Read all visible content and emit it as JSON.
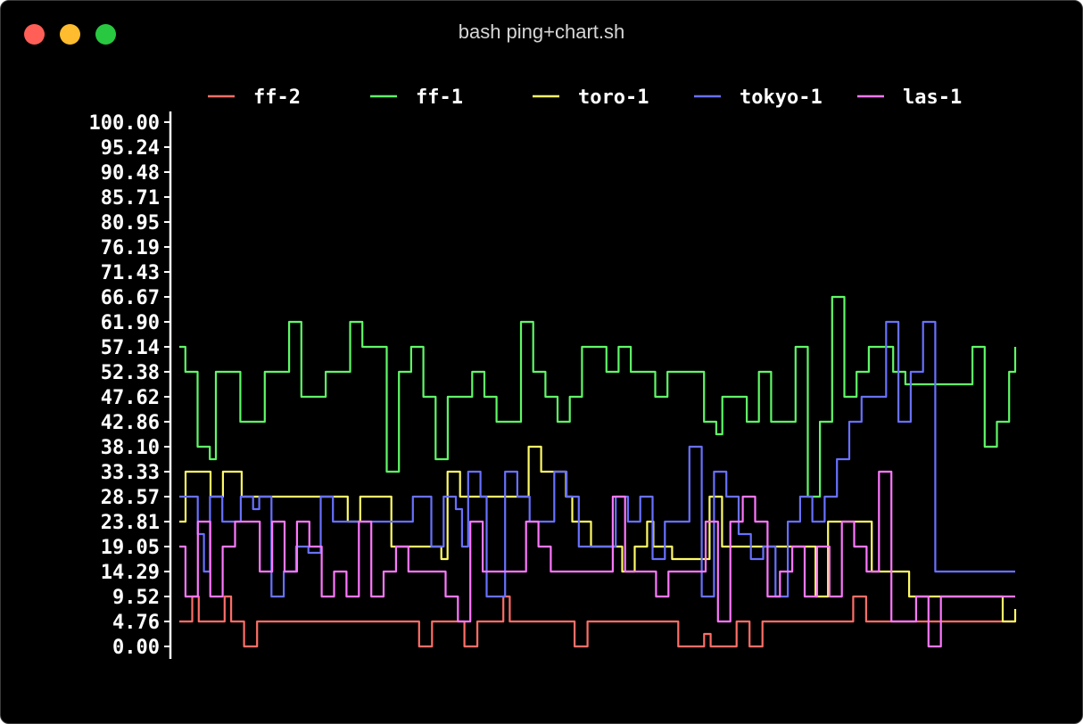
{
  "window": {
    "title": "bash ping+chart.sh",
    "controls": [
      {
        "name": "close",
        "color": "#ff5f57"
      },
      {
        "name": "minimize",
        "color": "#febc2e"
      },
      {
        "name": "zoom",
        "color": "#28c840"
      }
    ]
  },
  "chart_data": {
    "type": "line",
    "title": "",
    "xlabel": "",
    "ylabel": "",
    "ylim": [
      0,
      100
    ],
    "yticks": [
      "100.00",
      "95.24",
      "90.48",
      "85.71",
      "80.95",
      "76.19",
      "71.43",
      "66.67",
      "61.90",
      "57.14",
      "52.38",
      "47.62",
      "42.86",
      "38.10",
      "33.33",
      "28.57",
      "23.81",
      "19.05",
      "14.29",
      "9.52",
      "4.76",
      "0.00"
    ],
    "legend_position": "top",
    "series": [
      {
        "name": "ff-2",
        "color": "#ff6e67",
        "values": [
          4.76,
          4.76,
          9.52,
          4.76,
          4.76,
          4.76,
          4.76,
          9.52,
          4.76,
          4.76,
          0,
          0,
          4.76,
          4.76,
          4.76,
          4.76,
          4.76,
          4.76,
          4.76,
          4.76,
          4.76,
          4.76,
          4.76,
          4.76,
          4.76,
          4.76,
          4.76,
          4.76,
          4.76,
          4.76,
          4.76,
          4.76,
          4.76,
          4.76,
          4.76,
          4.76,
          4.76,
          0,
          0,
          4.76,
          4.76,
          4.76,
          4.76,
          4.76,
          0,
          0,
          4.76,
          4.76,
          4.76,
          4.76,
          9.52,
          4.76,
          4.76,
          4.76,
          4.76,
          4.76,
          4.76,
          4.76,
          4.76,
          4.76,
          4.76,
          0,
          0,
          4.76,
          4.76,
          4.76,
          4.76,
          4.76,
          4.76,
          4.76,
          4.76,
          4.76,
          4.76,
          4.76,
          4.76,
          4.76,
          4.76,
          0,
          0,
          0,
          0,
          2.38,
          0,
          0,
          0,
          0,
          4.76,
          4.76,
          0,
          0,
          4.76,
          4.76,
          4.76,
          4.76,
          4.76,
          4.76,
          4.76,
          4.76,
          4.76,
          4.76,
          4.76,
          4.76,
          4.76,
          4.76,
          9.52,
          9.52,
          4.76,
          4.76,
          4.76,
          4.76,
          4.76,
          4.76,
          4.76,
          4.76,
          4.76,
          4.76,
          4.76,
          4.76,
          4.76,
          4.76,
          4.76,
          4.76,
          4.76,
          4.76,
          4.76,
          4.76,
          4.76,
          4.76,
          4.76,
          4.76
        ]
      },
      {
        "name": "ff-1",
        "color": "#5ff967",
        "values": [
          57.14,
          52.38,
          52.38,
          38.1,
          38.1,
          35.71,
          52.38,
          52.38,
          52.38,
          52.38,
          42.86,
          42.86,
          42.86,
          42.86,
          52.38,
          52.38,
          52.38,
          52.38,
          61.9,
          61.9,
          47.62,
          47.62,
          47.62,
          47.62,
          52.38,
          52.38,
          52.38,
          52.38,
          61.9,
          61.9,
          57.14,
          57.14,
          57.14,
          57.14,
          33.33,
          33.33,
          52.38,
          52.38,
          57.14,
          57.14,
          47.62,
          47.62,
          35.71,
          35.71,
          47.62,
          47.62,
          47.62,
          47.62,
          52.38,
          52.38,
          47.62,
          47.62,
          42.86,
          42.86,
          42.86,
          42.86,
          61.9,
          61.9,
          52.38,
          52.38,
          47.62,
          47.62,
          42.86,
          42.86,
          47.62,
          47.62,
          57.14,
          57.14,
          57.14,
          57.14,
          52.38,
          52.38,
          57.14,
          57.14,
          52.38,
          52.38,
          52.38,
          52.38,
          47.62,
          47.62,
          52.38,
          52.38,
          52.38,
          52.38,
          52.38,
          52.38,
          42.86,
          42.86,
          40.48,
          47.62,
          47.62,
          47.62,
          47.62,
          42.86,
          42.86,
          52.38,
          52.38,
          42.86,
          42.86,
          42.86,
          42.86,
          57.14,
          57.14,
          28.57,
          28.57,
          42.86,
          42.86,
          66.67,
          66.67,
          47.62,
          47.62,
          52.38,
          52.38,
          57.14,
          57.14,
          57.14,
          57.14,
          52.38,
          52.38,
          50,
          50,
          50,
          50,
          50,
          50,
          50,
          50,
          50,
          50,
          50,
          57.14,
          57.14,
          38.1,
          38.1,
          42.86,
          42.86,
          52.38,
          57.14
        ]
      },
      {
        "name": "toro-1",
        "color": "#fefb67",
        "values": [
          23.81,
          33.33,
          33.33,
          33.33,
          33.33,
          28.57,
          28.57,
          33.33,
          33.33,
          33.33,
          28.57,
          28.57,
          28.57,
          28.57,
          28.57,
          28.57,
          28.57,
          28.57,
          28.57,
          28.57,
          28.57,
          28.57,
          28.57,
          28.57,
          28.57,
          28.57,
          28.57,
          23.81,
          23.81,
          28.57,
          28.57,
          28.57,
          28.57,
          28.57,
          19.05,
          19.05,
          19.05,
          19.05,
          19.05,
          19.05,
          19.05,
          19.05,
          16.67,
          33.33,
          33.33,
          28.57,
          28.57,
          28.57,
          28.57,
          28.57,
          28.57,
          28.57,
          28.57,
          28.57,
          28.57,
          28.57,
          38.1,
          38.1,
          33.33,
          33.33,
          33.33,
          33.33,
          28.57,
          23.81,
          23.81,
          23.81,
          19.05,
          19.05,
          19.05,
          19.05,
          19.05,
          14.29,
          14.29,
          19.05,
          19.05,
          23.81,
          19.05,
          19.05,
          19.05,
          16.67,
          16.67,
          16.67,
          16.67,
          16.67,
          16.67,
          28.57,
          28.57,
          19.05,
          19.05,
          19.05,
          19.05,
          19.05,
          19.05,
          19.05,
          19.05,
          19.05,
          19.05,
          19.05,
          19.05,
          19.05,
          19.05,
          19.05,
          9.52,
          9.52,
          23.81,
          23.81,
          23.81,
          23.81,
          23.81,
          23.81,
          23.81,
          14.29,
          14.29,
          14.29,
          14.29,
          14.29,
          14.29,
          9.52,
          9.52,
          9.52,
          9.52,
          9.52,
          9.52,
          9.52,
          9.52,
          9.52,
          9.52,
          9.52,
          9.52,
          9.52,
          9.52,
          9.52,
          4.76,
          4.76,
          7.14
        ]
      },
      {
        "name": "tokyo-1",
        "color": "#6871ff",
        "values": [
          28.57,
          28.57,
          28.57,
          21.43,
          14.29,
          28.57,
          28.57,
          23.81,
          23.81,
          23.81,
          28.57,
          28.57,
          26.19,
          28.57,
          28.57,
          9.52,
          9.52,
          14.29,
          14.29,
          19.05,
          19.05,
          17.86,
          17.86,
          28.57,
          28.57,
          23.81,
          23.81,
          23.81,
          23.81,
          23.81,
          23.81,
          23.81,
          23.81,
          23.81,
          23.81,
          23.81,
          23.81,
          23.81,
          28.57,
          28.57,
          28.57,
          19.05,
          19.05,
          28.57,
          28.57,
          26.19,
          19.05,
          33.33,
          33.33,
          28.57,
          9.52,
          9.52,
          9.52,
          33.33,
          33.33,
          28.57,
          28.57,
          23.81,
          23.81,
          23.81,
          23.81,
          33.33,
          33.33,
          28.57,
          28.57,
          19.05,
          19.05,
          19.05,
          19.05,
          19.05,
          19.05,
          28.57,
          28.57,
          23.81,
          23.81,
          28.57,
          28.57,
          16.67,
          16.67,
          23.81,
          23.81,
          23.81,
          23.81,
          38.1,
          38.1,
          9.52,
          9.52,
          33.33,
          33.33,
          28.57,
          28.57,
          21.43,
          21.43,
          16.67,
          16.67,
          19.05,
          19.05,
          9.52,
          9.52,
          23.81,
          23.81,
          28.57,
          28.57,
          23.81,
          23.81,
          28.57,
          28.57,
          35.71,
          35.71,
          42.86,
          42.86,
          47.62,
          47.62,
          47.62,
          47.62,
          61.9,
          61.9,
          42.86,
          42.86,
          52.38,
          52.38,
          61.9,
          61.9,
          14.29,
          14.29,
          14.29,
          14.29,
          14.29,
          14.29,
          14.29,
          14.29,
          14.29,
          14.29,
          14.29,
          14.29,
          14.29,
          14.29
        ]
      },
      {
        "name": "las-1",
        "color": "#ff77ff",
        "values": [
          19.05,
          9.52,
          9.52,
          23.81,
          23.81,
          9.52,
          9.52,
          19.05,
          19.05,
          23.81,
          23.81,
          23.81,
          23.81,
          14.29,
          14.29,
          23.81,
          23.81,
          14.29,
          14.29,
          23.81,
          23.81,
          19.05,
          19.05,
          9.52,
          9.52,
          14.29,
          14.29,
          9.52,
          9.52,
          23.81,
          23.81,
          9.52,
          9.52,
          14.29,
          14.29,
          19.05,
          19.05,
          14.29,
          14.29,
          14.29,
          14.29,
          14.29,
          14.29,
          9.52,
          9.52,
          4.76,
          4.76,
          23.81,
          23.81,
          14.29,
          14.29,
          14.29,
          14.29,
          14.29,
          14.29,
          14.29,
          23.81,
          23.81,
          19.05,
          19.05,
          14.29,
          14.29,
          14.29,
          14.29,
          14.29,
          14.29,
          14.29,
          14.29,
          14.29,
          14.29,
          28.57,
          28.57,
          14.29,
          14.29,
          14.29,
          14.29,
          14.29,
          9.52,
          9.52,
          14.29,
          14.29,
          14.29,
          14.29,
          14.29,
          14.29,
          23.81,
          23.81,
          4.76,
          4.76,
          23.81,
          23.81,
          28.57,
          28.57,
          23.81,
          23.81,
          9.52,
          9.52,
          14.29,
          14.29,
          19.05,
          19.05,
          9.52,
          9.52,
          19.05,
          19.05,
          9.52,
          9.52,
          23.81,
          23.81,
          19.05,
          19.05,
          14.29,
          14.29,
          33.33,
          33.33,
          4.76,
          4.76,
          4.76,
          4.76,
          9.52,
          9.52,
          0,
          0,
          9.52,
          9.52,
          9.52,
          9.52,
          9.52,
          9.52,
          9.52,
          9.52,
          9.52,
          9.52,
          9.52,
          9.52,
          9.52
        ]
      }
    ]
  }
}
